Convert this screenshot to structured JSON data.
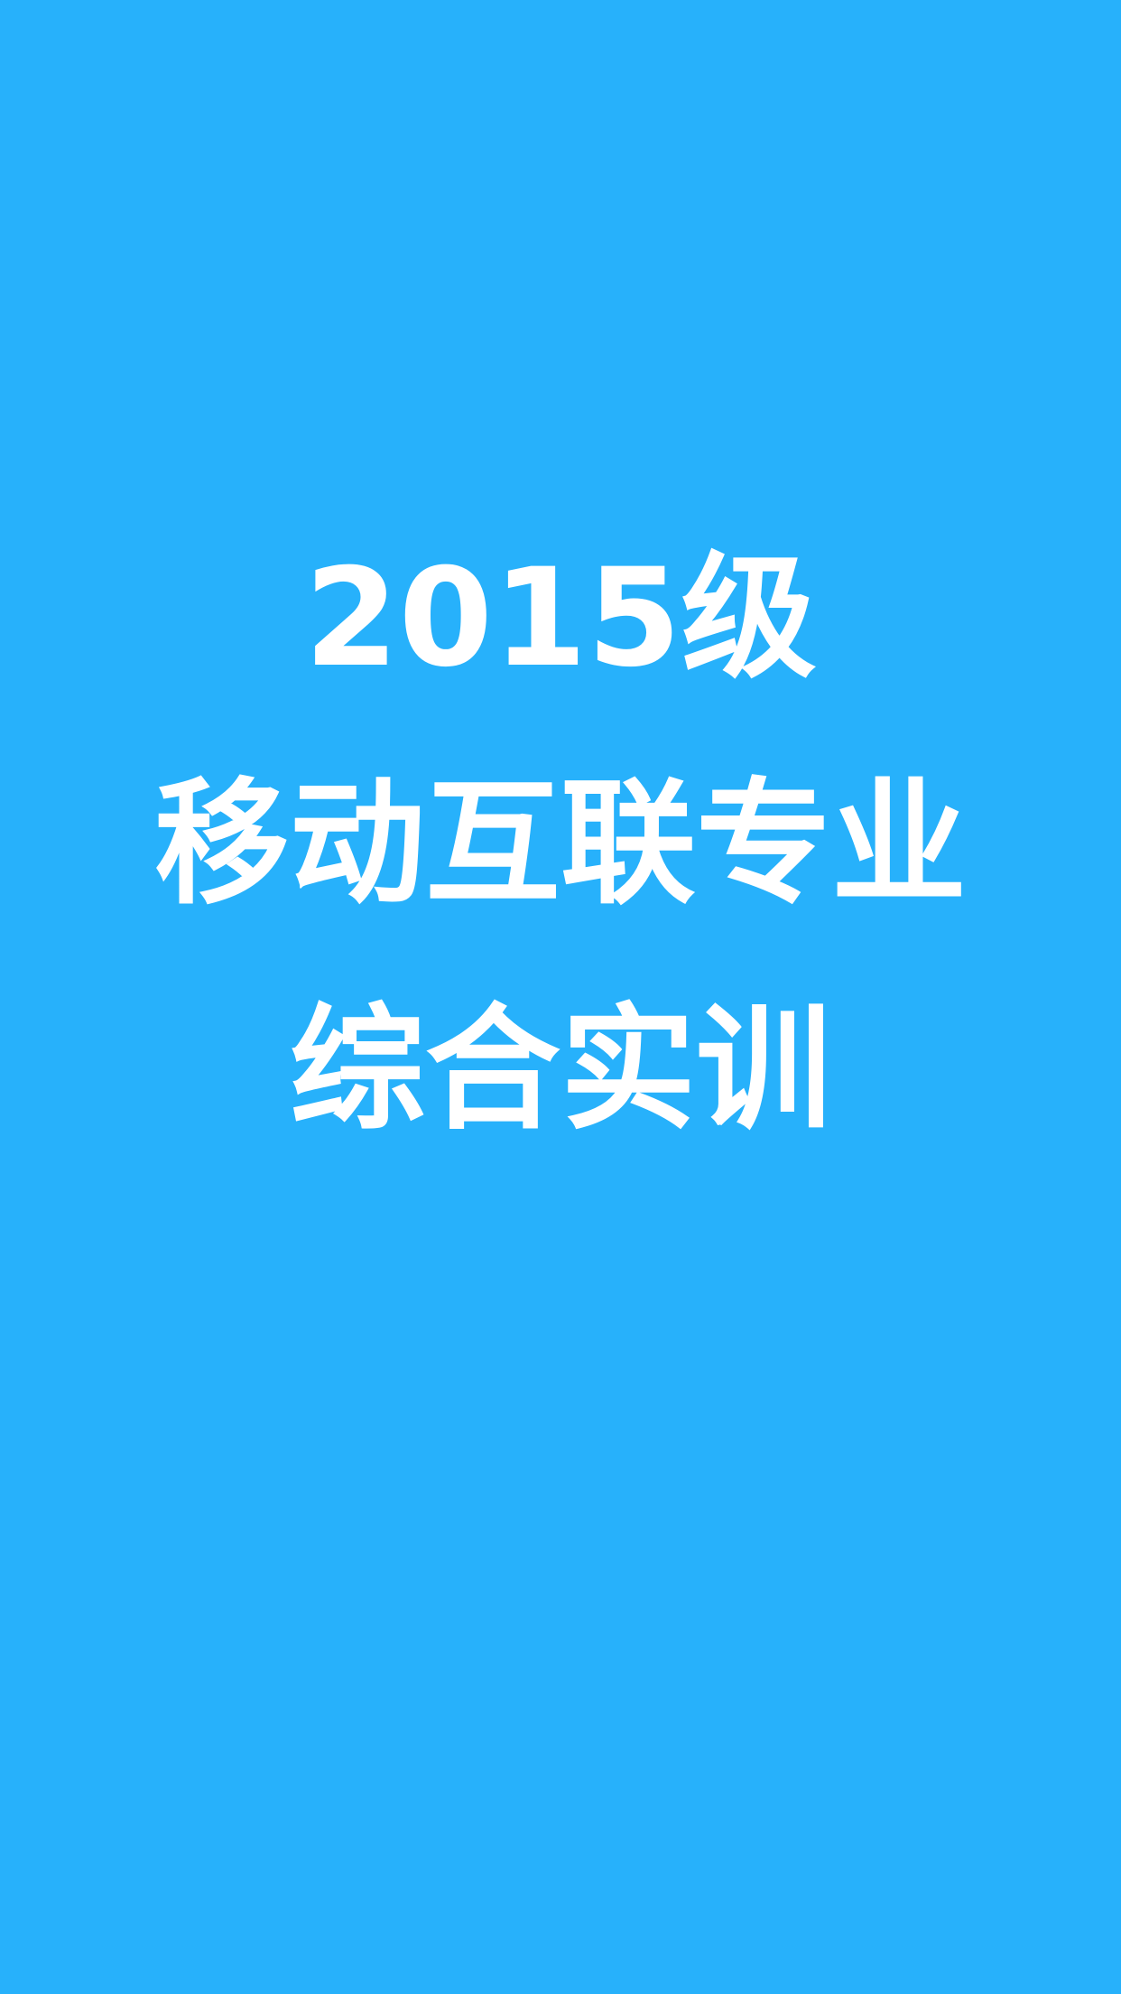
{
  "splash": {
    "background_color": "#27b1fb",
    "text_color": "#ffffff",
    "title_lines": [
      "2015级",
      "移动互联专业",
      "综合实训"
    ]
  }
}
